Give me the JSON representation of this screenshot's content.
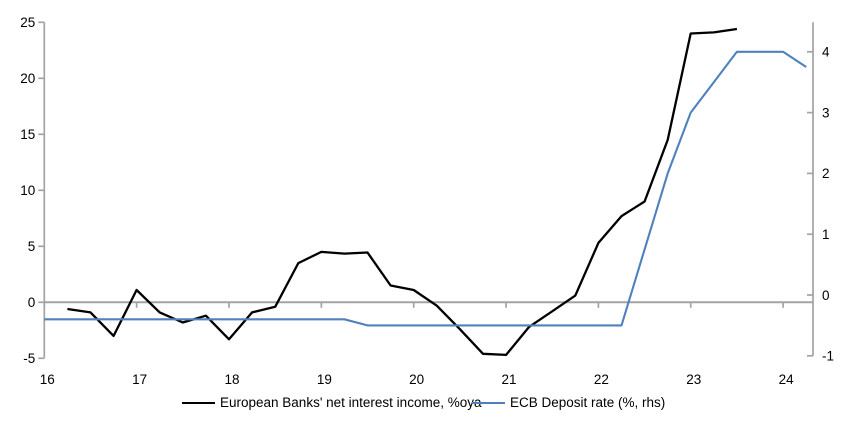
{
  "chart_data": {
    "type": "line",
    "title": "",
    "x_axis": {
      "min": 16,
      "max": 24.32,
      "ticks": [
        16,
        17,
        18,
        19,
        20,
        21,
        22,
        23,
        24
      ]
    },
    "left_axis": {
      "min": -5,
      "max": 25,
      "ticks": [
        25,
        20,
        15,
        10,
        5,
        0,
        -5
      ]
    },
    "right_axis": {
      "min": -1,
      "max": 4.5,
      "ticks": [
        4,
        3,
        2,
        1,
        0,
        -1
      ]
    },
    "grid": "zero-line-only",
    "legend_position": "bottom",
    "series": [
      {
        "id": "european-banks-nii",
        "name": "European Banks' net interest income, %oya",
        "axis": "left",
        "color": "#000000",
        "x_start": 16.25,
        "x_step": 0.25,
        "values": [
          -0.6,
          -0.9,
          -3.0,
          1.1,
          -0.9,
          -1.8,
          -1.2,
          -3.3,
          -0.9,
          -0.4,
          3.5,
          4.5,
          4.35,
          4.45,
          1.5,
          1.1,
          -0.3,
          -2.4,
          -4.6,
          -4.7,
          -2.2,
          -0.8,
          0.6,
          5.3,
          7.7,
          9.0,
          14.5,
          24.0,
          24.1,
          24.4
        ]
      },
      {
        "id": "ecb-deposit-rate",
        "name": "ECB Deposit rate (%, rhs)",
        "axis": "right",
        "color": "#4e81bd",
        "x_start": 16.0,
        "x_step": 0.25,
        "values": [
          -0.4,
          -0.4,
          -0.4,
          -0.4,
          -0.4,
          -0.4,
          -0.4,
          -0.4,
          -0.4,
          -0.4,
          -0.4,
          -0.4,
          -0.4,
          -0.4,
          -0.5,
          -0.5,
          -0.5,
          -0.5,
          -0.5,
          -0.5,
          -0.5,
          -0.5,
          -0.5,
          -0.5,
          -0.5,
          -0.5,
          0.75,
          2.0,
          3.0,
          3.5,
          4.0,
          4.0,
          4.0,
          3.75
        ]
      }
    ]
  },
  "colors": {
    "axis": "#a3a3a3",
    "zero_line": "#a3a3a3",
    "text": "#000000"
  }
}
